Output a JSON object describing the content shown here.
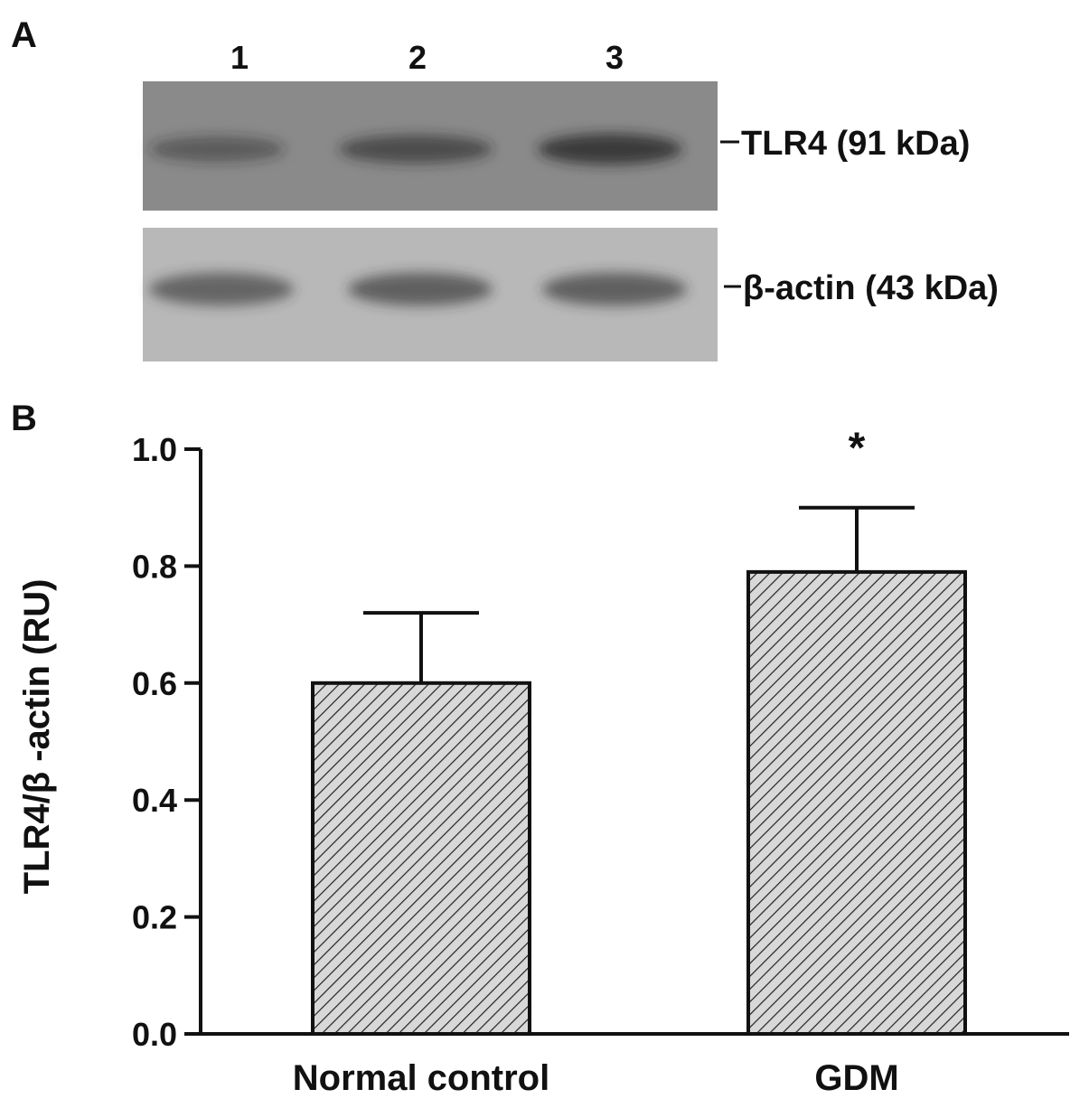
{
  "panels": {
    "a_letter": "A",
    "b_letter": "B"
  },
  "blot": {
    "lanes": [
      "1",
      "2",
      "3"
    ],
    "bands": [
      {
        "label": "TLR4 (91 kDa)",
        "intensities": [
          0.35,
          0.62,
          0.85
        ]
      },
      {
        "label": "β-actin (43 kDa)",
        "intensities": [
          0.7,
          0.72,
          0.72
        ]
      }
    ]
  },
  "colors": {
    "axis": "#111111",
    "bar_fill": "#d8d8d8",
    "hatch": "#222222",
    "blot_top_bg": "#8a8a8a",
    "blot_bottom_bg": "#b8b8b8"
  },
  "chart_data": {
    "type": "bar",
    "categories": [
      "Normal control",
      "GDM"
    ],
    "values": [
      0.6,
      0.79
    ],
    "errors": [
      0.12,
      0.11
    ],
    "annotations": [
      "",
      "*"
    ],
    "ylabel": "TLR4/β -actin (RU)",
    "xlabel": "",
    "ylim": [
      0,
      1.0
    ],
    "yticks": [
      0.0,
      0.2,
      0.4,
      0.6,
      0.8,
      1.0
    ],
    "ytick_labels": [
      "0.0",
      "0.2",
      "0.4",
      "0.6",
      "0.8",
      "1.0"
    ],
    "grid": false,
    "legend": "none"
  }
}
